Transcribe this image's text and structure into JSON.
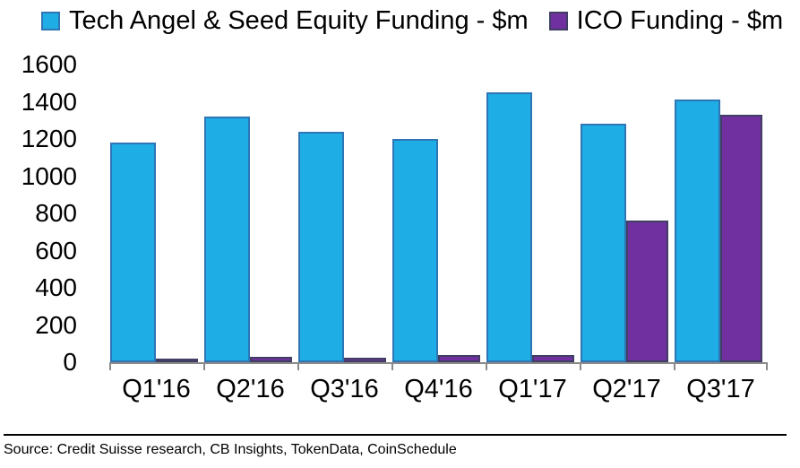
{
  "chart_data": {
    "type": "bar",
    "title": "",
    "categories": [
      "Q1'16",
      "Q2'16",
      "Q3'16",
      "Q4'16",
      "Q1'17",
      "Q2'17",
      "Q3'17"
    ],
    "series": [
      {
        "name": "Tech Angel & Seed Equity Funding - $m",
        "color": "#1fade6",
        "border_color": "#2e75b6",
        "values": [
          1180,
          1320,
          1240,
          1200,
          1450,
          1280,
          1410
        ]
      },
      {
        "name": "ICO Funding - $m",
        "color": "#7030a0",
        "border_color": "#403e63",
        "values": [
          15,
          30,
          25,
          40,
          40,
          760,
          1330
        ]
      }
    ],
    "xlabel": "",
    "ylabel": "",
    "ylim": [
      0,
      1600
    ],
    "yticks": [
      0,
      200,
      400,
      600,
      800,
      1000,
      1200,
      1400,
      1600
    ],
    "grid": false,
    "legend_position": "top",
    "axis_line_color": "#8a8a8a"
  },
  "source": {
    "text": "Source: Credit Suisse research, CB Insights, TokenData, CoinSchedule"
  }
}
